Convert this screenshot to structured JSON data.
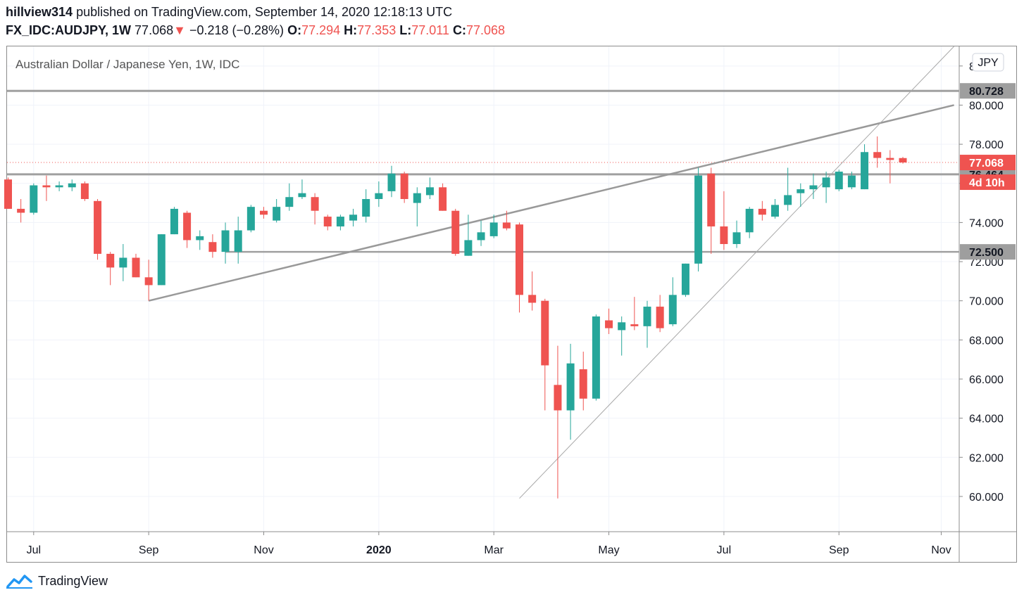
{
  "header": {
    "user": "hillview314",
    "published": "published on TradingView.com, September 14, 2020 12:18:13 UTC",
    "symbol": "FX_IDC:AUDJPY, 1W",
    "last": "77.068",
    "change_arrow": "▼",
    "change": "−0.218 (−0.28%)",
    "o_label": "O:",
    "o": "77.294",
    "h_label": "H:",
    "h": "77.353",
    "l_label": "L:",
    "l": "77.011",
    "c_label": "C:",
    "c": "77.068"
  },
  "brand": {
    "name": "TradingView"
  },
  "colors": {
    "up": "#26a69a",
    "down": "#ef5350",
    "lines": "#999999",
    "axis_label_bg": "#9e9e9e"
  },
  "chart_data": {
    "type": "candlestick",
    "title": "Australian Dollar / Japanese Yen, 1W, IDC",
    "currency": "JPY",
    "ylim": [
      58.2,
      83.0
    ],
    "y_ticks": [
      "60.000",
      "62.000",
      "64.000",
      "66.000",
      "68.000",
      "70.000",
      "72.000",
      "74.000",
      "76.000",
      "78.000",
      "80.000",
      "82.000"
    ],
    "x_ticks": [
      {
        "i": 2,
        "label": "Jul"
      },
      {
        "i": 11,
        "label": "Sep"
      },
      {
        "i": 20,
        "label": "Nov"
      },
      {
        "i": 29,
        "label": "2020"
      },
      {
        "i": 38,
        "label": "Mar"
      },
      {
        "i": 47,
        "label": "May"
      },
      {
        "i": 56,
        "label": "Jul"
      },
      {
        "i": 65,
        "label": "Sep"
      },
      {
        "i": 73,
        "label": "Nov"
      }
    ],
    "candles": [
      {
        "o": 76.2,
        "h": 76.3,
        "l": 74.7,
        "c": 74.7
      },
      {
        "o": 74.7,
        "h": 75.2,
        "l": 74.0,
        "c": 74.5
      },
      {
        "o": 74.5,
        "h": 76.0,
        "l": 74.4,
        "c": 75.9
      },
      {
        "o": 75.9,
        "h": 76.4,
        "l": 75.1,
        "c": 75.8
      },
      {
        "o": 75.8,
        "h": 76.1,
        "l": 75.6,
        "c": 75.9
      },
      {
        "o": 75.8,
        "h": 76.2,
        "l": 75.6,
        "c": 76.0
      },
      {
        "o": 76.0,
        "h": 76.1,
        "l": 75.1,
        "c": 75.2
      },
      {
        "o": 75.1,
        "h": 75.2,
        "l": 72.1,
        "c": 72.4
      },
      {
        "o": 72.4,
        "h": 72.5,
        "l": 70.8,
        "c": 71.7
      },
      {
        "o": 71.7,
        "h": 72.9,
        "l": 71.0,
        "c": 72.2
      },
      {
        "o": 72.2,
        "h": 72.4,
        "l": 71.2,
        "c": 71.2
      },
      {
        "o": 71.2,
        "h": 72.1,
        "l": 70.0,
        "c": 70.8
      },
      {
        "o": 70.8,
        "h": 73.4,
        "l": 70.8,
        "c": 73.4
      },
      {
        "o": 73.4,
        "h": 74.8,
        "l": 73.4,
        "c": 74.7
      },
      {
        "o": 74.5,
        "h": 74.6,
        "l": 72.7,
        "c": 73.1
      },
      {
        "o": 73.1,
        "h": 73.6,
        "l": 72.6,
        "c": 73.3
      },
      {
        "o": 73.0,
        "h": 73.4,
        "l": 72.2,
        "c": 72.5
      },
      {
        "o": 72.5,
        "h": 74.0,
        "l": 71.9,
        "c": 73.6
      },
      {
        "o": 72.5,
        "h": 74.3,
        "l": 71.9,
        "c": 73.6
      },
      {
        "o": 73.6,
        "h": 74.9,
        "l": 73.5,
        "c": 74.8
      },
      {
        "o": 74.6,
        "h": 74.8,
        "l": 74.2,
        "c": 74.4
      },
      {
        "o": 74.1,
        "h": 75.2,
        "l": 74.0,
        "c": 74.8
      },
      {
        "o": 74.8,
        "h": 76.0,
        "l": 74.6,
        "c": 75.3
      },
      {
        "o": 75.3,
        "h": 76.2,
        "l": 75.2,
        "c": 75.5
      },
      {
        "o": 75.3,
        "h": 75.5,
        "l": 73.9,
        "c": 74.6
      },
      {
        "o": 74.3,
        "h": 74.4,
        "l": 73.6,
        "c": 73.8
      },
      {
        "o": 73.8,
        "h": 74.4,
        "l": 73.6,
        "c": 74.3
      },
      {
        "o": 74.1,
        "h": 74.7,
        "l": 73.8,
        "c": 74.4
      },
      {
        "o": 74.3,
        "h": 75.7,
        "l": 74.0,
        "c": 75.2
      },
      {
        "o": 75.2,
        "h": 76.1,
        "l": 74.8,
        "c": 75.5
      },
      {
        "o": 75.6,
        "h": 76.9,
        "l": 75.3,
        "c": 76.5
      },
      {
        "o": 76.5,
        "h": 76.6,
        "l": 75.0,
        "c": 75.2
      },
      {
        "o": 75.0,
        "h": 75.8,
        "l": 73.8,
        "c": 75.5
      },
      {
        "o": 75.4,
        "h": 76.3,
        "l": 75.2,
        "c": 75.8
      },
      {
        "o": 75.8,
        "h": 76.0,
        "l": 74.6,
        "c": 74.6
      },
      {
        "o": 74.6,
        "h": 74.7,
        "l": 72.3,
        "c": 72.4
      },
      {
        "o": 72.3,
        "h": 74.4,
        "l": 72.3,
        "c": 73.1
      },
      {
        "o": 73.1,
        "h": 74.1,
        "l": 72.8,
        "c": 73.5
      },
      {
        "o": 73.3,
        "h": 74.4,
        "l": 73.2,
        "c": 74.0
      },
      {
        "o": 74.0,
        "h": 74.6,
        "l": 73.6,
        "c": 73.7
      },
      {
        "o": 73.9,
        "h": 74.0,
        "l": 69.4,
        "c": 70.3
      },
      {
        "o": 70.3,
        "h": 71.5,
        "l": 69.5,
        "c": 69.9
      },
      {
        "o": 70.0,
        "h": 70.1,
        "l": 64.4,
        "c": 66.7
      },
      {
        "o": 65.7,
        "h": 67.7,
        "l": 59.9,
        "c": 64.4
      },
      {
        "o": 64.4,
        "h": 67.8,
        "l": 62.9,
        "c": 66.8
      },
      {
        "o": 66.5,
        "h": 67.4,
        "l": 64.4,
        "c": 65.0
      },
      {
        "o": 65.0,
        "h": 69.3,
        "l": 64.9,
        "c": 69.2
      },
      {
        "o": 69.0,
        "h": 69.6,
        "l": 68.3,
        "c": 68.6
      },
      {
        "o": 68.5,
        "h": 69.2,
        "l": 67.2,
        "c": 68.9
      },
      {
        "o": 68.8,
        "h": 70.2,
        "l": 68.5,
        "c": 68.7
      },
      {
        "o": 68.7,
        "h": 70.0,
        "l": 67.6,
        "c": 69.7
      },
      {
        "o": 69.7,
        "h": 70.3,
        "l": 68.4,
        "c": 68.6
      },
      {
        "o": 68.8,
        "h": 71.2,
        "l": 68.7,
        "c": 70.3
      },
      {
        "o": 70.3,
        "h": 71.9,
        "l": 70.2,
        "c": 71.9
      },
      {
        "o": 71.9,
        "h": 76.8,
        "l": 71.5,
        "c": 76.4
      },
      {
        "o": 76.5,
        "h": 76.8,
        "l": 72.4,
        "c": 73.8
      },
      {
        "o": 73.8,
        "h": 75.6,
        "l": 72.6,
        "c": 72.9
      },
      {
        "o": 72.9,
        "h": 74.1,
        "l": 72.7,
        "c": 73.5
      },
      {
        "o": 73.5,
        "h": 74.8,
        "l": 73.2,
        "c": 74.7
      },
      {
        "o": 74.7,
        "h": 75.1,
        "l": 74.1,
        "c": 74.4
      },
      {
        "o": 74.3,
        "h": 75.2,
        "l": 74.2,
        "c": 74.9
      },
      {
        "o": 74.9,
        "h": 76.8,
        "l": 74.6,
        "c": 75.4
      },
      {
        "o": 75.5,
        "h": 76.0,
        "l": 74.8,
        "c": 75.7
      },
      {
        "o": 75.7,
        "h": 76.5,
        "l": 75.2,
        "c": 75.9
      },
      {
        "o": 75.8,
        "h": 76.6,
        "l": 75.0,
        "c": 76.3
      },
      {
        "o": 75.7,
        "h": 76.7,
        "l": 75.6,
        "c": 76.6
      },
      {
        "o": 75.8,
        "h": 76.6,
        "l": 75.7,
        "c": 76.4
      },
      {
        "o": 75.7,
        "h": 78.0,
        "l": 75.7,
        "c": 77.6
      },
      {
        "o": 77.6,
        "h": 78.4,
        "l": 76.8,
        "c": 77.3
      },
      {
        "o": 77.3,
        "h": 77.7,
        "l": 76.0,
        "c": 77.2
      },
      {
        "o": 77.294,
        "h": 77.353,
        "l": 77.011,
        "c": 77.068
      }
    ],
    "horizontal_levels": [
      {
        "value": 80.728,
        "label": "80.728"
      },
      {
        "value": 76.464,
        "label": "76.464"
      },
      {
        "value": 72.5,
        "label": "72.500"
      }
    ],
    "last_price": {
      "value": 77.068,
      "label": "77.068",
      "countdown": "4d 10h"
    },
    "trendlines": [
      {
        "from": {
          "i": 11,
          "v": 70.0
        },
        "to": {
          "i": 74,
          "v": 80.0
        }
      },
      {
        "from": {
          "i": 40,
          "v": 59.9
        },
        "to": {
          "i": 74,
          "v": 83.0
        }
      }
    ]
  }
}
